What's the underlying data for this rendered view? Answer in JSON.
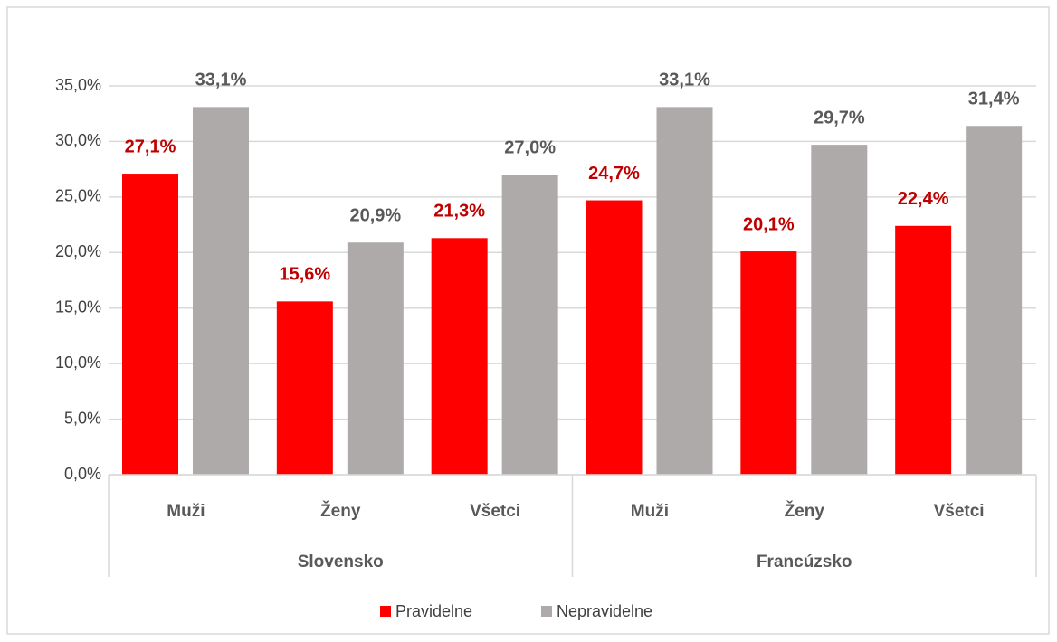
{
  "chart_data": {
    "type": "bar",
    "groups": [
      {
        "name": "Slovensko",
        "categories": [
          "Muži",
          "Ženy",
          "Všetci"
        ]
      },
      {
        "name": "Francúzsko",
        "categories": [
          "Muži",
          "Ženy",
          "Všetci"
        ]
      }
    ],
    "series": [
      {
        "name": "Pravidelne",
        "color": "#ff0000",
        "label_color": "#c00000",
        "values": [
          27.1,
          15.6,
          21.3,
          24.7,
          20.1,
          22.4
        ],
        "value_labels": [
          "27,1%",
          "15,6%",
          "21,3%",
          "24,7%",
          "20,1%",
          "22,4%"
        ]
      },
      {
        "name": "Nepravidelne",
        "color": "#aeaaaa",
        "label_color": "#595959",
        "values": [
          33.1,
          20.9,
          27.0,
          33.1,
          29.7,
          31.4
        ],
        "value_labels": [
          "33,1%",
          "20,9%",
          "27,0%",
          "33,1%",
          "29,7%",
          "31,4%"
        ]
      }
    ],
    "ylim": [
      0,
      35
    ],
    "yticks": [
      {
        "value": 0,
        "label": "0,0%"
      },
      {
        "value": 5,
        "label": "5,0%"
      },
      {
        "value": 10,
        "label": "10,0%"
      },
      {
        "value": 15,
        "label": "15,0%"
      },
      {
        "value": 20,
        "label": "20,0%"
      },
      {
        "value": 25,
        "label": "25,0%"
      },
      {
        "value": 30,
        "label": "30,0%"
      },
      {
        "value": 35,
        "label": "35,0%"
      }
    ],
    "grid": true,
    "legend": "bottom"
  }
}
